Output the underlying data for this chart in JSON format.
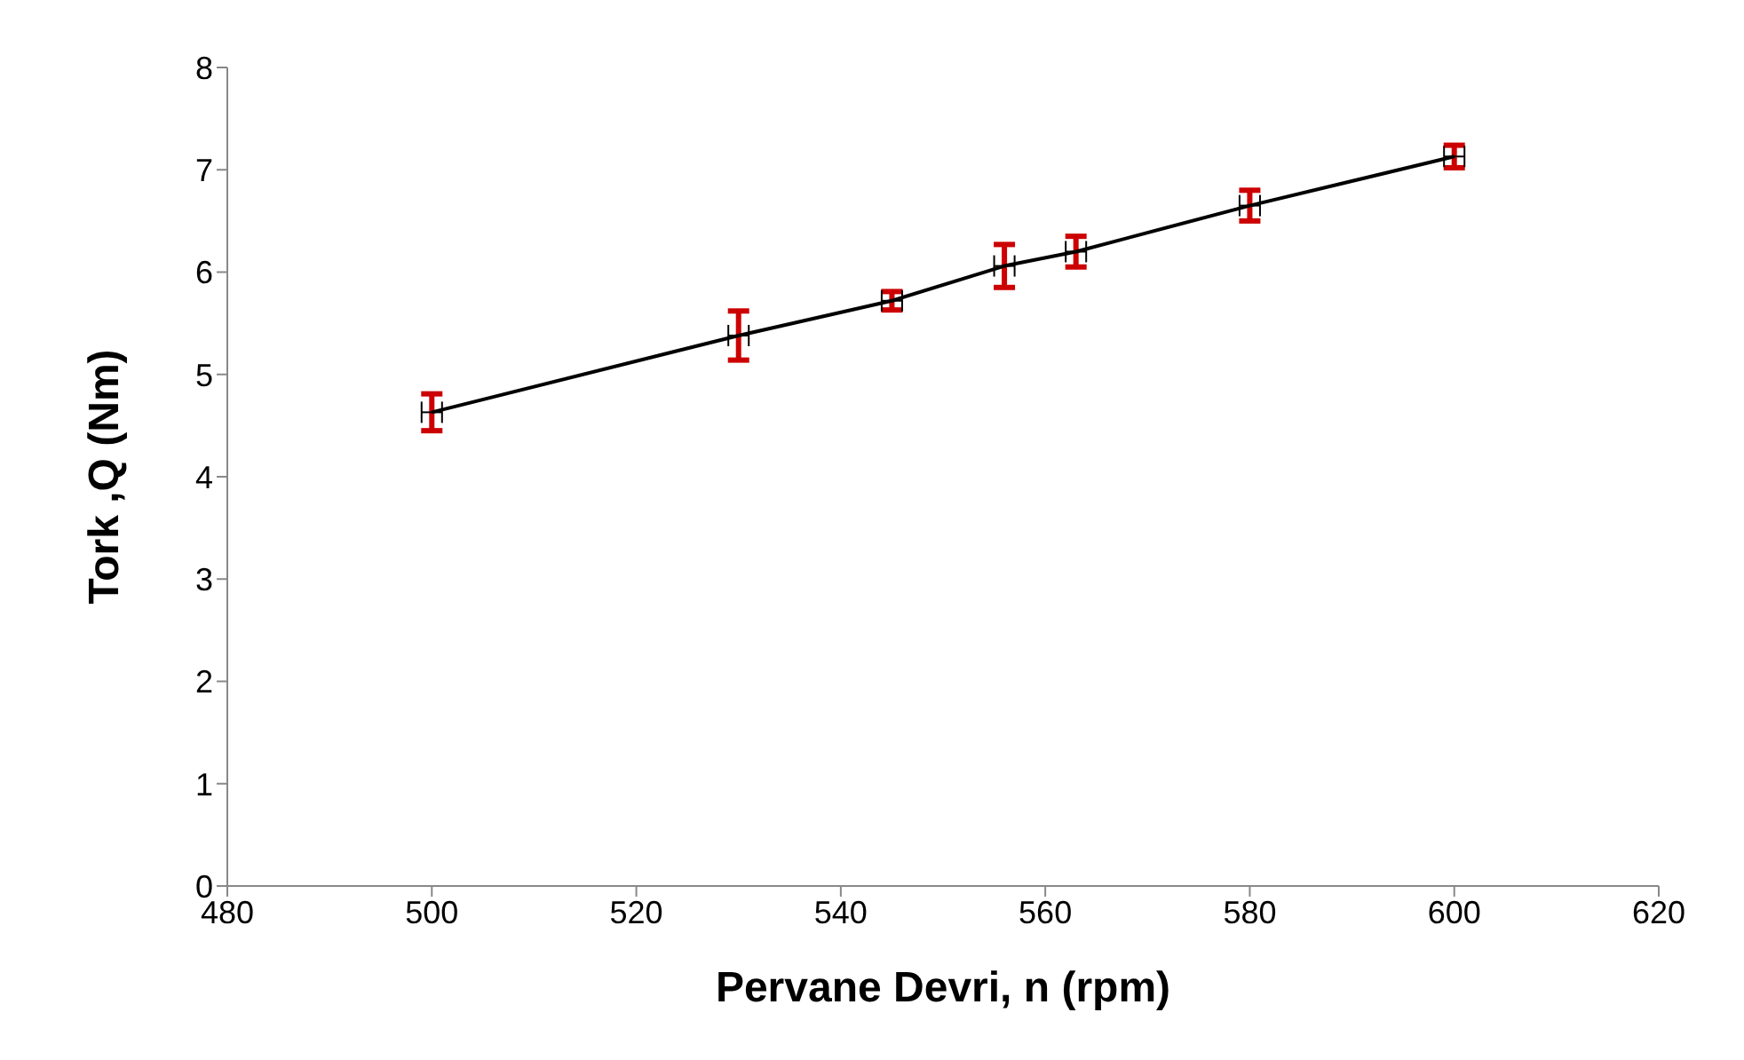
{
  "chart_data": {
    "type": "line",
    "xlabel": "Pervane Devri, n (rpm)",
    "ylabel": "Tork ,Q (Nm)",
    "x": [
      500,
      530,
      545,
      556,
      563,
      580,
      600
    ],
    "series": [
      {
        "color": "#000000",
        "values": [
          4.63,
          5.38,
          5.72,
          6.06,
          6.2,
          6.65,
          7.13
        ],
        "errors": [
          0.18,
          0.24,
          0.09,
          0.21,
          0.15,
          0.15,
          0.11
        ],
        "xerrors": [
          1,
          1,
          1,
          1,
          1,
          1,
          1
        ]
      }
    ],
    "xlim": [
      480,
      620
    ],
    "xticks": [
      480,
      500,
      520,
      540,
      560,
      580,
      600,
      620
    ],
    "ylim": [
      0,
      8
    ],
    "yticks": [
      0,
      1,
      2,
      3,
      4,
      5,
      6,
      7,
      8
    ],
    "grid": false,
    "legend": false,
    "marker": "none",
    "line_style": "solid"
  }
}
